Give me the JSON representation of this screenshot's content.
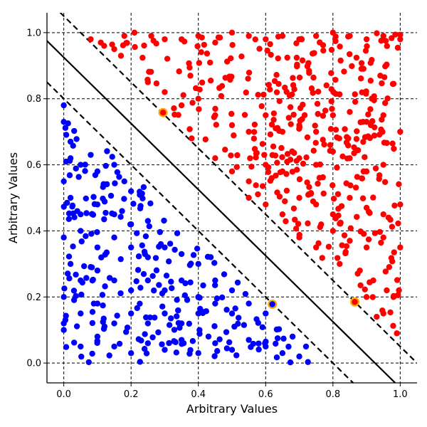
{
  "chart_data": {
    "type": "scatter",
    "title": "",
    "xlabel": "Arbitrary Values",
    "ylabel": "Arbitrary Values",
    "xlim": [
      -0.05,
      1.05
    ],
    "ylim": [
      -0.06,
      1.06
    ],
    "xticks": [
      0.0,
      0.2,
      0.4,
      0.6,
      0.8,
      1.0
    ],
    "yticks": [
      0.0,
      0.2,
      0.4,
      0.6,
      0.8,
      1.0
    ],
    "xtick_labels": [
      "0.0",
      "0.2",
      "0.4",
      "0.6",
      "0.8",
      "1.0"
    ],
    "ytick_labels": [
      "0.0",
      "0.2",
      "0.4",
      "0.6",
      "0.8",
      "1.0"
    ],
    "grid": true,
    "grid_style": "dashed",
    "classes": [
      {
        "color": "#ff0000",
        "region": "x + y > 1.05 (upper-right, above the upper margin)",
        "points_sample": [
          [
            0.08,
            0.98
          ],
          [
            0.11,
            0.97
          ],
          [
            0.12,
            0.96
          ],
          [
            0.15,
            0.95
          ],
          [
            0.17,
            0.93
          ],
          [
            0.18,
            0.99
          ],
          [
            0.21,
            1.0
          ],
          [
            0.26,
            0.99
          ],
          [
            0.3,
            0.98
          ],
          [
            0.35,
            0.98
          ],
          [
            0.4,
            0.99
          ],
          [
            0.45,
            0.97
          ],
          [
            0.5,
            1.0
          ],
          [
            0.55,
            0.99
          ],
          [
            0.6,
            0.98
          ],
          [
            0.65,
            0.99
          ],
          [
            0.7,
            0.98
          ],
          [
            0.75,
            0.99
          ],
          [
            0.8,
            1.0
          ],
          [
            0.85,
            0.99
          ],
          [
            0.9,
            0.98
          ],
          [
            0.95,
            0.99
          ],
          [
            1.0,
            0.98
          ],
          [
            0.25,
            0.85
          ],
          [
            0.3,
            0.82
          ],
          [
            0.35,
            0.78
          ],
          [
            0.4,
            0.8
          ],
          [
            0.45,
            0.75
          ],
          [
            0.5,
            0.72
          ],
          [
            0.55,
            0.7
          ],
          [
            0.6,
            0.75
          ],
          [
            0.65,
            0.7
          ],
          [
            0.7,
            0.72
          ],
          [
            0.75,
            0.7
          ],
          [
            0.8,
            0.75
          ],
          [
            0.85,
            0.76
          ],
          [
            0.9,
            0.73
          ],
          [
            0.95,
            0.75
          ],
          [
            1.0,
            0.7
          ],
          [
            0.38,
            0.68
          ],
          [
            0.45,
            0.62
          ],
          [
            0.5,
            0.58
          ],
          [
            0.55,
            0.55
          ],
          [
            0.6,
            0.6
          ],
          [
            0.65,
            0.58
          ],
          [
            0.7,
            0.62
          ],
          [
            0.75,
            0.6
          ],
          [
            0.8,
            0.64
          ],
          [
            0.85,
            0.62
          ],
          [
            0.9,
            0.58
          ],
          [
            0.95,
            0.6
          ],
          [
            0.55,
            0.5
          ],
          [
            0.6,
            0.48
          ],
          [
            0.65,
            0.45
          ],
          [
            0.7,
            0.5
          ],
          [
            0.75,
            0.48
          ],
          [
            0.8,
            0.45
          ],
          [
            0.85,
            0.5
          ],
          [
            0.9,
            0.47
          ],
          [
            0.95,
            0.45
          ],
          [
            1.0,
            0.48
          ],
          [
            0.7,
            0.38
          ],
          [
            0.75,
            0.35
          ],
          [
            0.8,
            0.4
          ],
          [
            0.85,
            0.37
          ],
          [
            0.9,
            0.35
          ],
          [
            0.95,
            0.38
          ],
          [
            1.0,
            0.35
          ],
          [
            0.82,
            0.3
          ],
          [
            0.88,
            0.28
          ],
          [
            0.92,
            0.25
          ],
          [
            0.96,
            0.22
          ],
          [
            0.98,
            0.2
          ],
          [
            0.95,
            0.15
          ],
          [
            0.99,
            0.09
          ],
          [
            0.93,
            0.14
          ],
          [
            0.9,
            0.2
          ]
        ]
      },
      {
        "color": "#0000ff",
        "region": "x + y < 0.8 (lower-left, below the lower margin)",
        "points_sample": [
          [
            0.0,
            0.78
          ],
          [
            0.0,
            0.73
          ],
          [
            0.02,
            0.67
          ],
          [
            0.02,
            0.62
          ],
          [
            0.05,
            0.6
          ],
          [
            0.08,
            0.63
          ],
          [
            0.1,
            0.58
          ],
          [
            0.15,
            0.6
          ],
          [
            0.18,
            0.55
          ],
          [
            0.2,
            0.52
          ],
          [
            0.0,
            0.55
          ],
          [
            0.02,
            0.5
          ],
          [
            0.05,
            0.45
          ],
          [
            0.1,
            0.48
          ],
          [
            0.15,
            0.45
          ],
          [
            0.2,
            0.42
          ],
          [
            0.25,
            0.43
          ],
          [
            0.0,
            0.38
          ],
          [
            0.05,
            0.4
          ],
          [
            0.1,
            0.35
          ],
          [
            0.15,
            0.38
          ],
          [
            0.2,
            0.35
          ],
          [
            0.25,
            0.32
          ],
          [
            0.3,
            0.35
          ],
          [
            0.35,
            0.33
          ],
          [
            0.4,
            0.3
          ],
          [
            0.02,
            0.3
          ],
          [
            0.05,
            0.25
          ],
          [
            0.1,
            0.28
          ],
          [
            0.15,
            0.25
          ],
          [
            0.2,
            0.22
          ],
          [
            0.25,
            0.25
          ],
          [
            0.3,
            0.22
          ],
          [
            0.35,
            0.25
          ],
          [
            0.4,
            0.2
          ],
          [
            0.45,
            0.25
          ],
          [
            0.5,
            0.22
          ],
          [
            0.0,
            0.2
          ],
          [
            0.05,
            0.15
          ],
          [
            0.1,
            0.18
          ],
          [
            0.15,
            0.12
          ],
          [
            0.2,
            0.15
          ],
          [
            0.25,
            0.12
          ],
          [
            0.3,
            0.15
          ],
          [
            0.35,
            0.12
          ],
          [
            0.4,
            0.15
          ],
          [
            0.45,
            0.18
          ],
          [
            0.5,
            0.15
          ],
          [
            0.55,
            0.18
          ],
          [
            0.6,
            0.15
          ],
          [
            0.0,
            0.12
          ],
          [
            0.0,
            0.1
          ],
          [
            0.05,
            0.05
          ],
          [
            0.1,
            0.08
          ],
          [
            0.15,
            0.05
          ],
          [
            0.2,
            0.03
          ],
          [
            0.25,
            0.06
          ],
          [
            0.3,
            0.04
          ],
          [
            0.35,
            0.07
          ],
          [
            0.4,
            0.03
          ],
          [
            0.45,
            0.06
          ],
          [
            0.5,
            0.04
          ],
          [
            0.55,
            0.07
          ],
          [
            0.6,
            0.05
          ],
          [
            0.65,
            0.03
          ],
          [
            0.68,
            0.08
          ],
          [
            0.7,
            0.02
          ],
          [
            0.72,
            0.05
          ]
        ]
      }
    ],
    "highlighted_points": [
      {
        "x": 0.295,
        "y": 0.758,
        "fill": "#ff0000",
        "edge": "#ffa500"
      },
      {
        "x": 0.62,
        "y": 0.178,
        "fill": "#0000ff",
        "edge": "#ffa500"
      },
      {
        "x": 0.865,
        "y": 0.185,
        "fill": "#ff0000",
        "edge": "#ffa500"
      }
    ],
    "lines": [
      {
        "style": "solid",
        "intercept": 0.925,
        "slope": -1
      },
      {
        "style": "dashed",
        "intercept": 1.05,
        "slope": -1
      },
      {
        "style": "dashed",
        "intercept": 0.8,
        "slope": -1
      }
    ]
  }
}
